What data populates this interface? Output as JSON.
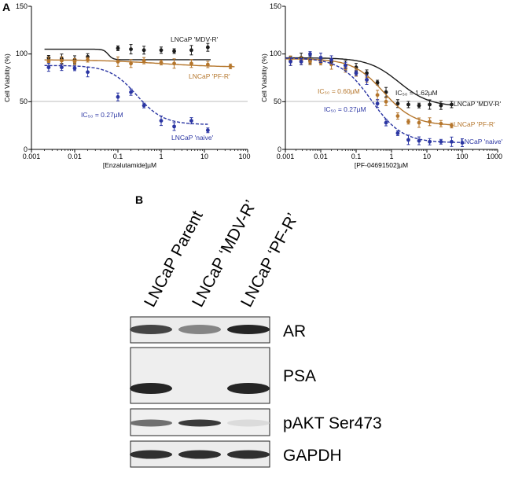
{
  "panel_a_label": "A",
  "panel_b_label": "B",
  "chart_data": [
    {
      "type": "scatter",
      "panel": "A-left",
      "xscale": "log",
      "xlim": [
        0.001,
        100
      ],
      "ylim": [
        0,
        150
      ],
      "xlabel": "[Enzalutamide]µM",
      "ylabel": "Cell Viability (%)",
      "xticks": [
        "0.001",
        "0.01",
        "0.1",
        "1",
        "10",
        "100"
      ],
      "yticks": [
        "0",
        "50",
        "100",
        "150"
      ],
      "reference_line": 50,
      "series": [
        {
          "name": "LNCaP 'MDV-R'",
          "color": "#1a1a1a",
          "x": [
            0.0025,
            0.005,
            0.01,
            0.02,
            0.1,
            0.2,
            0.4,
            1.0,
            2.0,
            5.0,
            12.0
          ],
          "y": [
            96,
            95,
            94,
            97,
            106,
            105,
            104,
            104,
            103,
            104,
            107
          ],
          "fit": {
            "bottom": 94,
            "top": 105,
            "ec50": 0.06,
            "hill": 8,
            "x_range": [
              0.002,
              14
            ]
          }
        },
        {
          "name": "LNCaP 'PF-R'",
          "color": "#b5762c",
          "x": [
            0.0025,
            0.005,
            0.01,
            0.02,
            0.1,
            0.2,
            0.4,
            1.0,
            2.0,
            5.0,
            12.0,
            40.0
          ],
          "y": [
            92,
            93,
            92,
            94,
            92,
            90,
            93,
            91,
            90,
            90,
            89,
            87
          ],
          "fit": {
            "bottom": 86,
            "top": 94,
            "ec50": 1.0,
            "hill": 0.6,
            "x_range": [
              0.002,
              50
            ]
          }
        },
        {
          "name": "LNCaP 'naive'",
          "color": "#2b36a3",
          "x": [
            0.0025,
            0.005,
            0.01,
            0.02,
            0.1,
            0.2,
            0.4,
            1.0,
            2.0,
            5.0,
            12.0
          ],
          "y": [
            86,
            86,
            85,
            81,
            55,
            60,
            46,
            30,
            24,
            30,
            20
          ],
          "fit": {
            "bottom": 26,
            "top": 88,
            "ec50": 0.27,
            "hill": 1.4,
            "x_range": [
              0.002,
              12
            ]
          }
        }
      ],
      "annotations": [
        {
          "text": "IC₅₀ = 0.27µM",
          "color": "#2b36a3"
        }
      ]
    },
    {
      "type": "scatter",
      "panel": "A-right",
      "xscale": "log",
      "xlim": [
        0.001,
        1000
      ],
      "ylim": [
        0,
        150
      ],
      "xlabel": "[PF-04691502]µM",
      "ylabel": "Cell Viability (%)",
      "xticks": [
        "0.001",
        "0.01",
        "0.1",
        "1",
        "10",
        "100",
        "1000"
      ],
      "yticks": [
        "0",
        "50",
        "100",
        "150"
      ],
      "reference_line": 50,
      "series": [
        {
          "name": "LNCaP 'MDV-R'",
          "color": "#1a1a1a",
          "x": [
            0.0014,
            0.0028,
            0.005,
            0.01,
            0.02,
            0.05,
            0.1,
            0.2,
            0.4,
            0.7,
            1.5,
            3.0,
            6.0,
            12.0,
            25.0,
            50.0
          ],
          "y": [
            95,
            96,
            94,
            94,
            92,
            88,
            86,
            80,
            70,
            60,
            48,
            47,
            46,
            47,
            46,
            47
          ],
          "fit": {
            "bottom": 45,
            "top": 96,
            "ec50": 1.62,
            "hill": 1.0,
            "x_range": [
              0.001,
              50
            ]
          }
        },
        {
          "name": "LNCaP 'PF-R'",
          "color": "#b5762c",
          "x": [
            0.0014,
            0.0028,
            0.005,
            0.01,
            0.02,
            0.05,
            0.1,
            0.2,
            0.4,
            0.7,
            1.5,
            3.0,
            6.0,
            12.0,
            25.0,
            50.0
          ],
          "y": [
            93,
            93,
            92,
            91,
            89,
            85,
            80,
            73,
            57,
            50,
            35,
            29,
            28,
            29,
            27,
            25
          ],
          "fit": {
            "bottom": 25,
            "top": 95,
            "ec50": 0.6,
            "hill": 1.0,
            "x_range": [
              0.001,
              50
            ]
          }
        },
        {
          "name": "LNCaP 'naive'",
          "color": "#2b36a3",
          "x": [
            0.0014,
            0.0028,
            0.005,
            0.01,
            0.02,
            0.05,
            0.1,
            0.2,
            0.4,
            0.7,
            1.5,
            3.0,
            6.0,
            12.0,
            25.0,
            50.0,
            100.0
          ],
          "y": [
            92,
            92,
            100,
            96,
            94,
            88,
            80,
            73,
            48,
            28,
            17,
            10,
            9,
            8,
            8,
            8,
            7
          ],
          "fit": {
            "bottom": 7,
            "top": 96,
            "ec50": 0.27,
            "hill": 1.0,
            "x_range": [
              0.001,
              100
            ]
          }
        }
      ],
      "annotations": [
        {
          "text": "IC₅₀ = 1.62µM",
          "color": "#1a1a1a"
        },
        {
          "text": "IC₅₀ = 0.60µM",
          "color": "#b5762c"
        },
        {
          "text": "IC₅₀ = 0.27µM",
          "color": "#2b36a3"
        }
      ]
    }
  ],
  "western_blot": {
    "lanes": [
      "LNCaP Parent",
      "LNCaP ‘MDV-R’",
      "LNCaP ‘PF-R’"
    ],
    "proteins": [
      {
        "name": "AR",
        "intensity": [
          0.75,
          0.45,
          0.9
        ]
      },
      {
        "name": "PSA",
        "intensity": [
          0.9,
          0.0,
          0.9
        ]
      },
      {
        "name": "pAKT Ser473",
        "intensity": [
          0.55,
          0.8,
          0.05
        ]
      },
      {
        "name": "GAPDH",
        "intensity": [
          0.85,
          0.85,
          0.85
        ]
      }
    ]
  }
}
